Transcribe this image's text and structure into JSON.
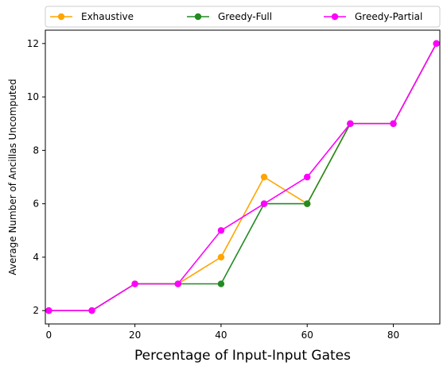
{
  "chart_data": {
    "type": "line",
    "title": "",
    "xlabel": "Percentage of Input-Input Gates",
    "ylabel": "Average Number of Ancillas Uncomputed",
    "xlim": [
      -0.8,
      90.8
    ],
    "ylim": [
      1.5,
      12.5
    ],
    "xticks": [
      0,
      20,
      40,
      60,
      80
    ],
    "yticks": [
      2,
      4,
      6,
      8,
      10,
      12
    ],
    "grid": false,
    "legend_position": "top-outside",
    "x": [
      0,
      10,
      20,
      30,
      40,
      50,
      60,
      70,
      80,
      90
    ],
    "series": [
      {
        "name": "Exhaustive",
        "color": "#FFA500",
        "marker": "circle",
        "values": [
          2,
          2,
          3,
          3,
          4,
          7,
          6,
          9,
          9,
          12
        ]
      },
      {
        "name": "Greedy-Full",
        "color": "#228B22",
        "marker": "circle",
        "values": [
          2,
          2,
          3,
          3,
          3,
          6,
          6,
          9,
          9,
          12
        ]
      },
      {
        "name": "Greedy-Partial",
        "color": "#FF00FF",
        "marker": "circle",
        "values": [
          2,
          2,
          3,
          3,
          5,
          6,
          7,
          9,
          9,
          12
        ]
      }
    ]
  }
}
